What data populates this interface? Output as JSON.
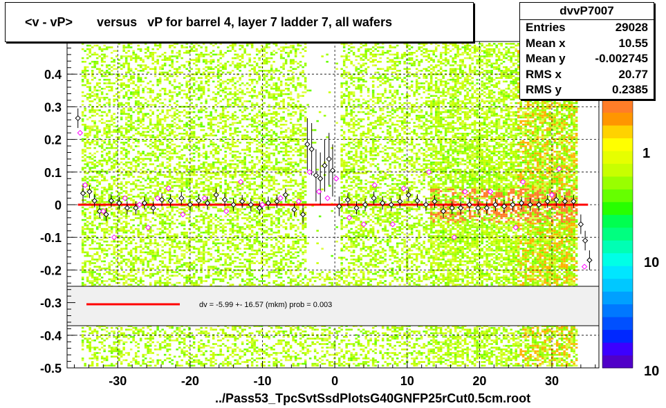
{
  "title": "<v - vP>       versus   vP for barrel 4, layer 7 ladder 7, all wafers",
  "stats": {
    "name": "dvvP7007",
    "rows": [
      {
        "label": "Entries",
        "value": "29028"
      },
      {
        "label": "Mean x",
        "value": "10.55"
      },
      {
        "label": "Mean y",
        "value": "-0.002745"
      },
      {
        "label": "RMS x",
        "value": "20.77"
      },
      {
        "label": "RMS y",
        "value": "0.2385"
      }
    ]
  },
  "x_title": "../Pass53_TpcSvtSsdPlotsG40GNFP25rCut0.5cm.root",
  "legend_text": "dv =   -5.99 +- 16.57 (mkm) prob = 0.003",
  "colors": {
    "fit_line": "#ff0000",
    "profile_black": "#000000",
    "profile_magenta": "#ff00ff",
    "legend_bg": "#f0f0f0"
  },
  "chart_data": {
    "type": "scatter",
    "xlim": [
      -37,
      36.5
    ],
    "ylim": [
      -0.5,
      0.5
    ],
    "x_ticks": [
      -30,
      -20,
      -10,
      0,
      10,
      20,
      30
    ],
    "y_ticks": [
      0.4,
      0.3,
      0.2,
      0.1,
      0,
      -0.1,
      -0.2,
      -0.3,
      -0.4,
      -0.5
    ],
    "y_tick_labels": [
      "0.4",
      "0.3",
      "0.2",
      "0.1",
      "0",
      "-0.1",
      "-0.2",
      "-0.3",
      "-0.4",
      "-0.5"
    ],
    "x_tick_labels": [
      "-30",
      "-20",
      "-10",
      "0",
      "10",
      "20",
      "30"
    ],
    "grid": true,
    "palette_labels": [
      "1",
      "10",
      "10"
    ],
    "fit": {
      "x": [
        -35.5,
        35
      ],
      "y": [
        0,
        0
      ]
    },
    "series": [
      {
        "name": "",
        "color": "#000000",
        "marker": "diamond-open",
        "points": [
          {
            "x": -35.5,
            "y": 0.265,
            "err": 0.03
          },
          {
            "x": -34.8,
            "y": 0.035,
            "err": 0.03
          },
          {
            "x": -33.9,
            "y": 0.04,
            "err": 0.02
          },
          {
            "x": -33.2,
            "y": 0.012,
            "err": 0.02
          },
          {
            "x": -32.5,
            "y": -0.02,
            "err": 0.02
          },
          {
            "x": -31.6,
            "y": -0.03,
            "err": 0.02
          },
          {
            "x": -30.9,
            "y": 0.012,
            "err": 0.02
          },
          {
            "x": -29.8,
            "y": 0.005,
            "err": 0.02
          },
          {
            "x": -28.7,
            "y": -0.01,
            "err": 0.02
          },
          {
            "x": -27.5,
            "y": -0.01,
            "err": 0.02
          },
          {
            "x": -26.3,
            "y": 0.005,
            "err": 0.02
          },
          {
            "x": -25.1,
            "y": -0.01,
            "err": 0.02
          },
          {
            "x": -23.9,
            "y": 0.015,
            "err": 0.02
          },
          {
            "x": -22.7,
            "y": 0.012,
            "err": 0.02
          },
          {
            "x": -21.2,
            "y": 0.02,
            "err": 0.02
          },
          {
            "x": -20.0,
            "y": 0.0,
            "err": 0.02
          },
          {
            "x": -18.8,
            "y": 0.012,
            "err": 0.02
          },
          {
            "x": -17.6,
            "y": 0.005,
            "err": 0.02
          },
          {
            "x": -16.4,
            "y": 0.03,
            "err": 0.02
          },
          {
            "x": -15.2,
            "y": 0.015,
            "err": 0.02
          },
          {
            "x": -14.0,
            "y": 0.0,
            "err": 0.02
          },
          {
            "x": -12.8,
            "y": 0.01,
            "err": 0.02
          },
          {
            "x": -11.6,
            "y": 0.0,
            "err": 0.02
          },
          {
            "x": -10.4,
            "y": -0.01,
            "err": 0.02
          },
          {
            "x": -9.2,
            "y": 0.005,
            "err": 0.02
          },
          {
            "x": -8.0,
            "y": 0.01,
            "err": 0.02
          },
          {
            "x": -6.8,
            "y": 0.03,
            "err": 0.02
          },
          {
            "x": -5.6,
            "y": -0.015,
            "err": 0.02
          },
          {
            "x": -4.4,
            "y": -0.03,
            "err": 0.03
          },
          {
            "x": -3.8,
            "y": 0.185,
            "err": 0.08
          },
          {
            "x": -3.2,
            "y": 0.17,
            "err": 0.08
          },
          {
            "x": -2.6,
            "y": 0.09,
            "err": 0.08
          },
          {
            "x": -2.0,
            "y": 0.08,
            "err": 0.08
          },
          {
            "x": -1.4,
            "y": 0.12,
            "err": 0.08
          },
          {
            "x": -0.8,
            "y": 0.14,
            "err": 0.08
          },
          {
            "x": -0.3,
            "y": 0.105,
            "err": 0.08
          },
          {
            "x": 0.6,
            "y": -0.005,
            "err": 0.03
          },
          {
            "x": 1.8,
            "y": 0.015,
            "err": 0.02
          },
          {
            "x": 3.0,
            "y": -0.01,
            "err": 0.02
          },
          {
            "x": 4.2,
            "y": 0.0,
            "err": 0.02
          },
          {
            "x": 5.4,
            "y": 0.02,
            "err": 0.02
          },
          {
            "x": 6.6,
            "y": 0.005,
            "err": 0.02
          },
          {
            "x": 7.8,
            "y": 0.0,
            "err": 0.02
          },
          {
            "x": 9.0,
            "y": 0.01,
            "err": 0.02
          },
          {
            "x": 10.2,
            "y": 0.03,
            "err": 0.02
          },
          {
            "x": 11.4,
            "y": 0.012,
            "err": 0.02
          },
          {
            "x": 12.6,
            "y": 0.0,
            "err": 0.02
          },
          {
            "x": 13.8,
            "y": 0.01,
            "err": 0.02
          },
          {
            "x": 15.0,
            "y": -0.02,
            "err": 0.02
          },
          {
            "x": 16.2,
            "y": -0.01,
            "err": 0.02
          },
          {
            "x": 17.4,
            "y": -0.01,
            "err": 0.02
          },
          {
            "x": 18.6,
            "y": 0.0,
            "err": 0.02
          },
          {
            "x": 19.8,
            "y": -0.01,
            "err": 0.02
          },
          {
            "x": 21.0,
            "y": -0.01,
            "err": 0.02
          },
          {
            "x": 22.2,
            "y": 0.0,
            "err": 0.02
          },
          {
            "x": 23.4,
            "y": -0.005,
            "err": 0.02
          },
          {
            "x": 24.6,
            "y": 0.0,
            "err": 0.02
          },
          {
            "x": 25.8,
            "y": 0.005,
            "err": 0.02
          },
          {
            "x": 27.0,
            "y": 0.0,
            "err": 0.02
          },
          {
            "x": 28.2,
            "y": 0.0,
            "err": 0.02
          },
          {
            "x": 29.4,
            "y": 0.01,
            "err": 0.02
          },
          {
            "x": 30.6,
            "y": 0.015,
            "err": 0.02
          },
          {
            "x": 31.8,
            "y": 0.01,
            "err": 0.02
          },
          {
            "x": 33.0,
            "y": 0.01,
            "err": 0.02
          },
          {
            "x": 34.0,
            "y": -0.06,
            "err": 0.03
          },
          {
            "x": 34.6,
            "y": -0.11,
            "err": 0.03
          },
          {
            "x": 35.2,
            "y": -0.17,
            "err": 0.03
          }
        ]
      },
      {
        "name": "",
        "color": "#ff00ff",
        "marker": "diamond-open",
        "points": [
          {
            "x": -35.2,
            "y": 0.22
          },
          {
            "x": -34.5,
            "y": 0.06
          },
          {
            "x": -32.0,
            "y": -0.02
          },
          {
            "x": -30.5,
            "y": -0.1
          },
          {
            "x": -29.0,
            "y": 0.02
          },
          {
            "x": -27.0,
            "y": 0.0
          },
          {
            "x": -25.8,
            "y": -0.07
          },
          {
            "x": -24.5,
            "y": 0.02
          },
          {
            "x": -23.0,
            "y": 0.05
          },
          {
            "x": -21.0,
            "y": -0.03
          },
          {
            "x": -18.0,
            "y": 0.02
          },
          {
            "x": -15.0,
            "y": -0.02
          },
          {
            "x": -13.0,
            "y": 0.07
          },
          {
            "x": -10.0,
            "y": 0.0
          },
          {
            "x": -7.5,
            "y": 0.02
          },
          {
            "x": -5.0,
            "y": 0.01
          },
          {
            "x": -3.5,
            "y": 0.1
          },
          {
            "x": -2.2,
            "y": 0.04
          },
          {
            "x": -1.0,
            "y": 0.02
          },
          {
            "x": 0.2,
            "y": 0.08
          },
          {
            "x": 2.0,
            "y": -0.04
          },
          {
            "x": 4.0,
            "y": -0.06
          },
          {
            "x": 5.5,
            "y": 0.06
          },
          {
            "x": 8.0,
            "y": -0.06
          },
          {
            "x": 9.5,
            "y": 0.05
          },
          {
            "x": 13.0,
            "y": 0.1
          },
          {
            "x": 16.5,
            "y": -0.1
          },
          {
            "x": 18.0,
            "y": 0.04
          },
          {
            "x": 21.5,
            "y": 0.04
          },
          {
            "x": 25.0,
            "y": -0.07
          },
          {
            "x": 26.0,
            "y": 0.07
          },
          {
            "x": 30.0,
            "y": 0.03
          },
          {
            "x": 31.0,
            "y": 0.11
          },
          {
            "x": 34.5,
            "y": -0.19
          }
        ]
      }
    ]
  }
}
